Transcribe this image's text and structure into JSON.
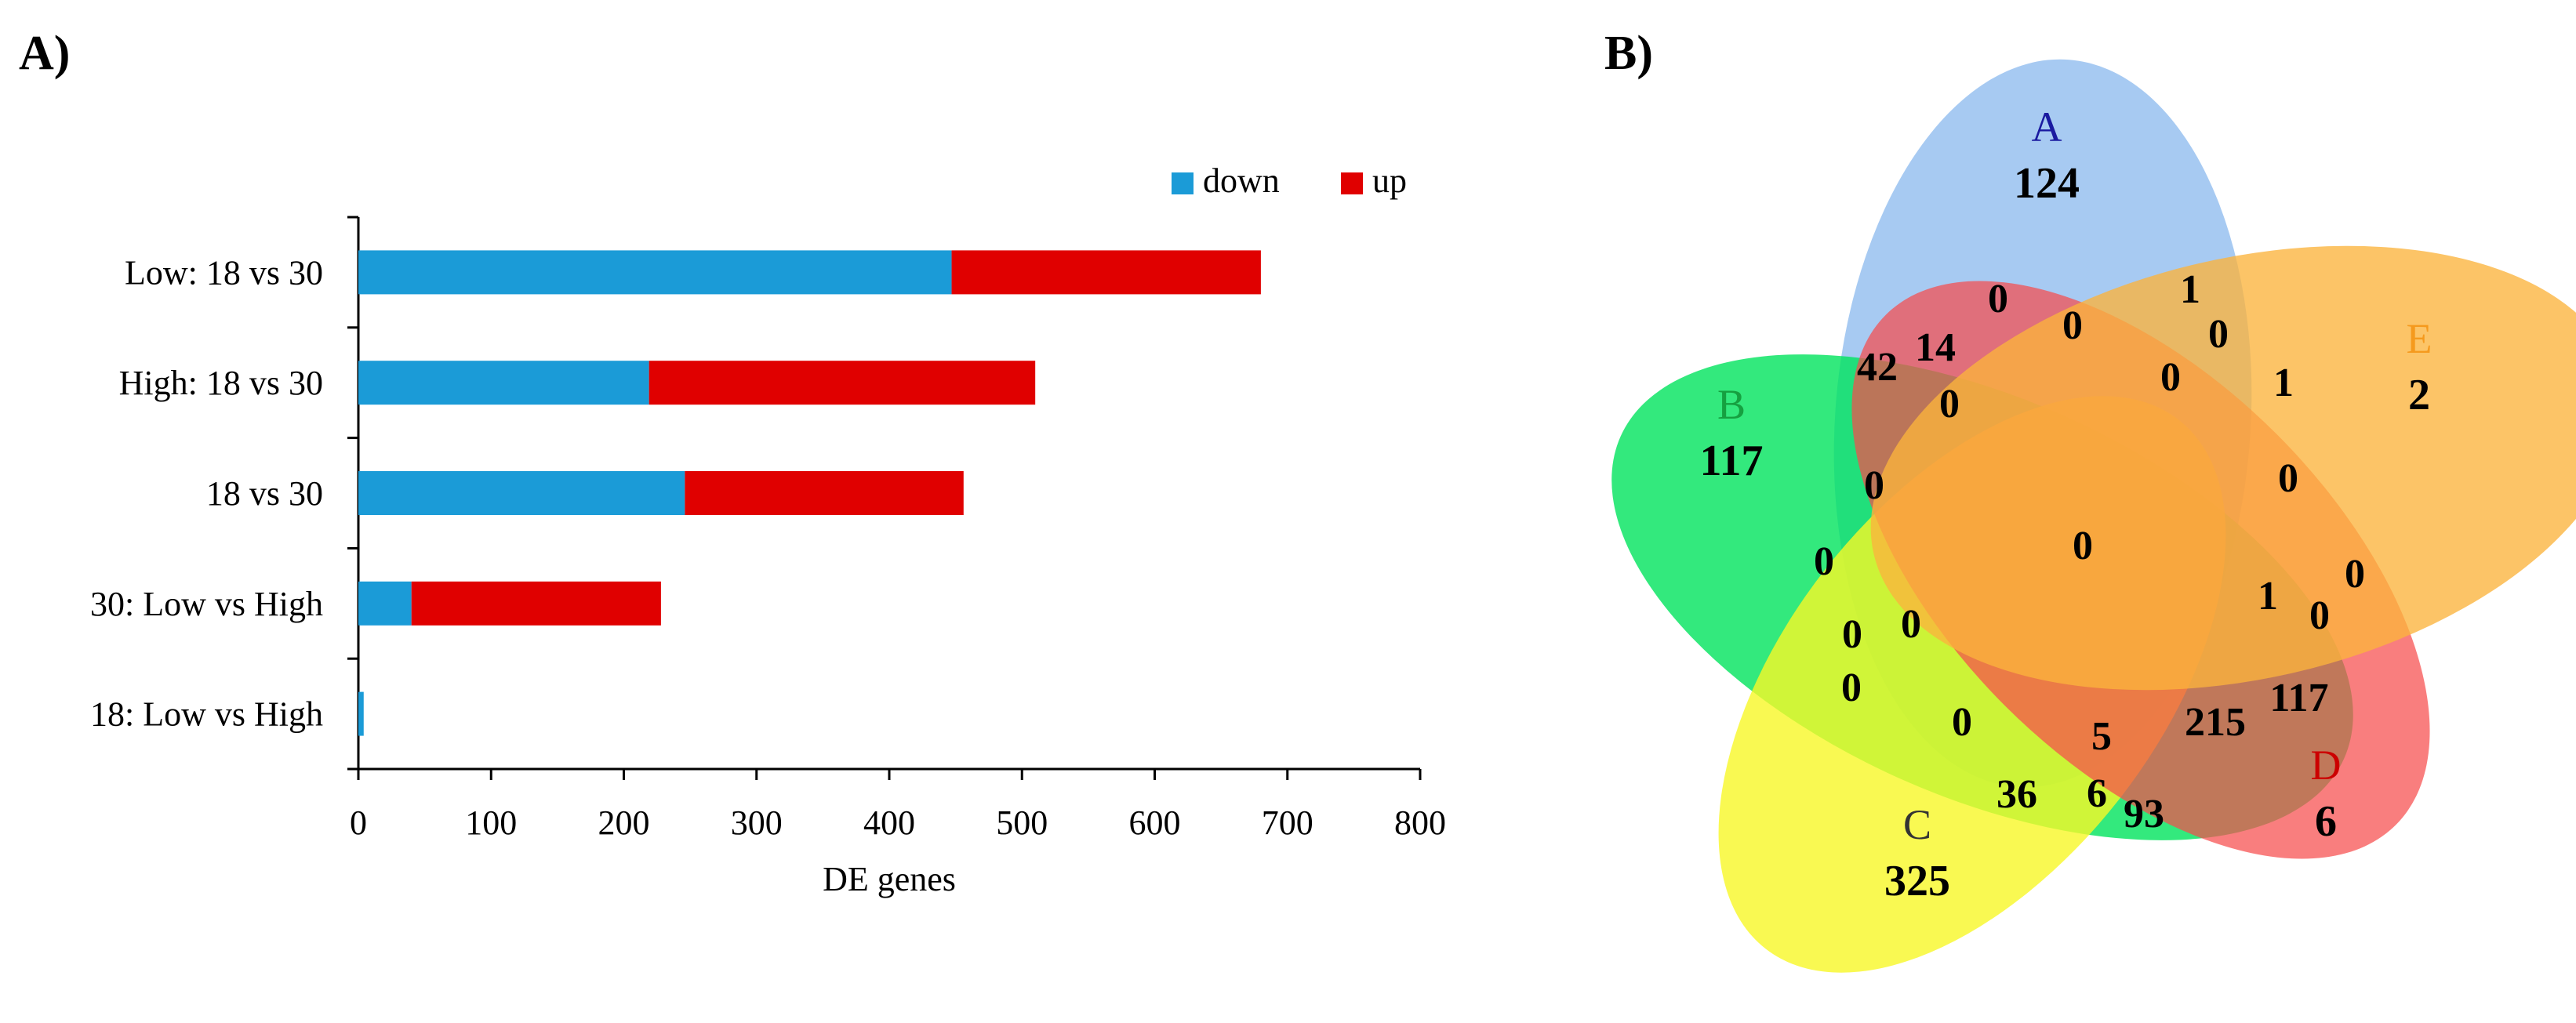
{
  "panel_a_label": "A)",
  "panel_b_label": "B)",
  "chart_data": [
    {
      "type": "bar",
      "orientation": "horizontal",
      "stacked": true,
      "categories": [
        "Low: 18 vs 30",
        "High: 18 vs 30",
        "18 vs 30",
        "30: Low vs High",
        "18: Low vs High"
      ],
      "series": [
        {
          "name": "down",
          "color": "#1b9bd7",
          "values": [
            447,
            219,
            246,
            40,
            4
          ]
        },
        {
          "name": "up",
          "color": "#e00000",
          "values": [
            233,
            291,
            210,
            188,
            0
          ]
        }
      ],
      "xlabel": "DE genes",
      "ylabel": "",
      "xlim": [
        0,
        800
      ],
      "xticks": [
        "0",
        "100",
        "200",
        "300",
        "400",
        "500",
        "600",
        "700",
        "800"
      ],
      "legend": {
        "position": "top-right",
        "labels": [
          "down",
          "up"
        ]
      }
    },
    {
      "type": "venn",
      "sets": [
        {
          "id": "A",
          "label": "A",
          "unique_count": "124",
          "color": "#7eb1ec",
          "text_color": "#1a1aa0"
        },
        {
          "id": "B",
          "label": "B",
          "unique_count": "117",
          "color": "#00e35c",
          "text_color": "#16a040"
        },
        {
          "id": "C",
          "label": "C",
          "unique_count": "325",
          "color": "#f7f727",
          "text_color": "#333333"
        },
        {
          "id": "D",
          "label": "D",
          "unique_count": "6",
          "color": "#f74c4c",
          "text_color": "#cc0000"
        },
        {
          "id": "E",
          "label": "E",
          "unique_count": "2",
          "color": "#fbb43c",
          "text_color": "#f59a1e"
        }
      ],
      "region_counts": [
        "0",
        "1",
        "0",
        "0",
        "1",
        "42",
        "14",
        "0",
        "0",
        "0",
        "0",
        "0",
        "0",
        "0",
        "1",
        "0",
        "0",
        "0",
        "0",
        "0",
        "5",
        "215",
        "117",
        "36",
        "6",
        "93"
      ]
    }
  ]
}
